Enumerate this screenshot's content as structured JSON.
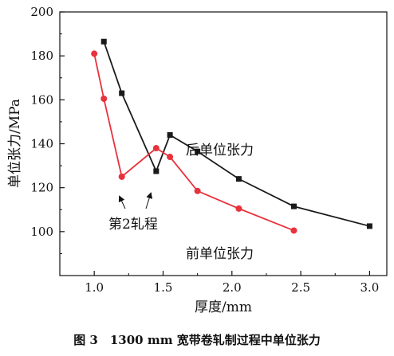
{
  "chart_data": {
    "type": "line",
    "title": "",
    "xlabel": "厚度/mm",
    "ylabel": "单位张力/MPa",
    "xlim": [
      0.75,
      3.125
    ],
    "ylim": [
      80,
      200
    ],
    "x_ticks": [
      1.0,
      1.5,
      2.0,
      2.5,
      3.0
    ],
    "x_tick_labels": [
      "1.0",
      "1.5",
      "2.0",
      "2.5",
      "3.0"
    ],
    "y_ticks": [
      100,
      120,
      140,
      160,
      180,
      200
    ],
    "y_tick_labels": [
      "100",
      "120",
      "140",
      "160",
      "180",
      "200"
    ],
    "grid": false,
    "series": [
      {
        "name": "后单位张力",
        "color": "#1a1a1a",
        "marker": "square",
        "x": [
          1.07,
          1.2,
          1.45,
          1.55,
          1.75,
          2.05,
          2.45,
          3.0
        ],
        "y": [
          186.5,
          163,
          127.5,
          144,
          136.5,
          124,
          111.5,
          102.5
        ]
      },
      {
        "name": "前单位张力",
        "color": "#e8323c",
        "marker": "circle",
        "x": [
          1.0,
          1.07,
          1.2,
          1.45,
          1.55,
          1.75,
          2.05,
          2.45
        ],
        "y": [
          181,
          160.5,
          125,
          138,
          134,
          118.5,
          110.5,
          100.5
        ]
      }
    ],
    "annotations": [
      {
        "text": "后单位张力",
        "x": 2.0,
        "y": 139.5
      },
      {
        "text": "前单位张力",
        "x": 2.0,
        "y": 98
      },
      {
        "text": "第2轧程",
        "x": 1.32,
        "y": 112.5
      }
    ],
    "caption": "图 3　1300 mm 宽带卷轧制过程中单位张力"
  }
}
